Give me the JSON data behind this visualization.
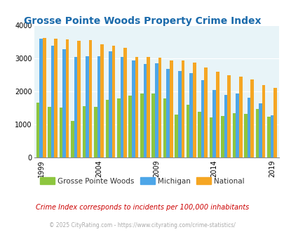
{
  "title": "Grosse Pointe Woods Property Crime Index",
  "title_color": "#1a6aab",
  "subtitle": "Crime Index corresponds to incidents per 100,000 inhabitants",
  "subtitle_color": "#cc0000",
  "copyright": "© 2025 CityRating.com - https://www.cityrating.com/crime-statistics/",
  "copyright_color": "#aaaaaa",
  "plot_bg_color": "#e8f4f8",
  "years": [
    1999,
    2000,
    2001,
    2002,
    2003,
    2004,
    2005,
    2006,
    2007,
    2008,
    2009,
    2010,
    2011,
    2012,
    2013,
    2014,
    2015,
    2016,
    2017,
    2018,
    2019
  ],
  "grosse_pointe": [
    1670,
    1550,
    1510,
    1110,
    1560,
    1540,
    1760,
    1790,
    1870,
    1940,
    1950,
    1800,
    1310,
    1600,
    1400,
    1220,
    1260,
    1350,
    1330,
    1470,
    1250
  ],
  "michigan": [
    3600,
    3380,
    3280,
    3060,
    3080,
    3080,
    3220,
    3060,
    2950,
    2840,
    2850,
    2680,
    2620,
    2550,
    2350,
    2040,
    1900,
    1940,
    1810,
    1640,
    1280
  ],
  "national": [
    3620,
    3600,
    3590,
    3540,
    3550,
    3440,
    3390,
    3320,
    3050,
    3040,
    3030,
    2950,
    2950,
    2870,
    2730,
    2600,
    2490,
    2460,
    2360,
    2200,
    2110
  ],
  "grosse_color": "#8dc63f",
  "michigan_color": "#4da6e8",
  "national_color": "#f5a623",
  "ylim": [
    0,
    4000
  ],
  "yticks": [
    0,
    1000,
    2000,
    3000,
    4000
  ],
  "xtick_years": [
    1999,
    2004,
    2009,
    2014,
    2019
  ],
  "legend_labels": [
    "Grosse Pointe Woods",
    "Michigan",
    "National"
  ],
  "legend_colors": [
    "#8dc63f",
    "#4da6e8",
    "#f5a623"
  ]
}
